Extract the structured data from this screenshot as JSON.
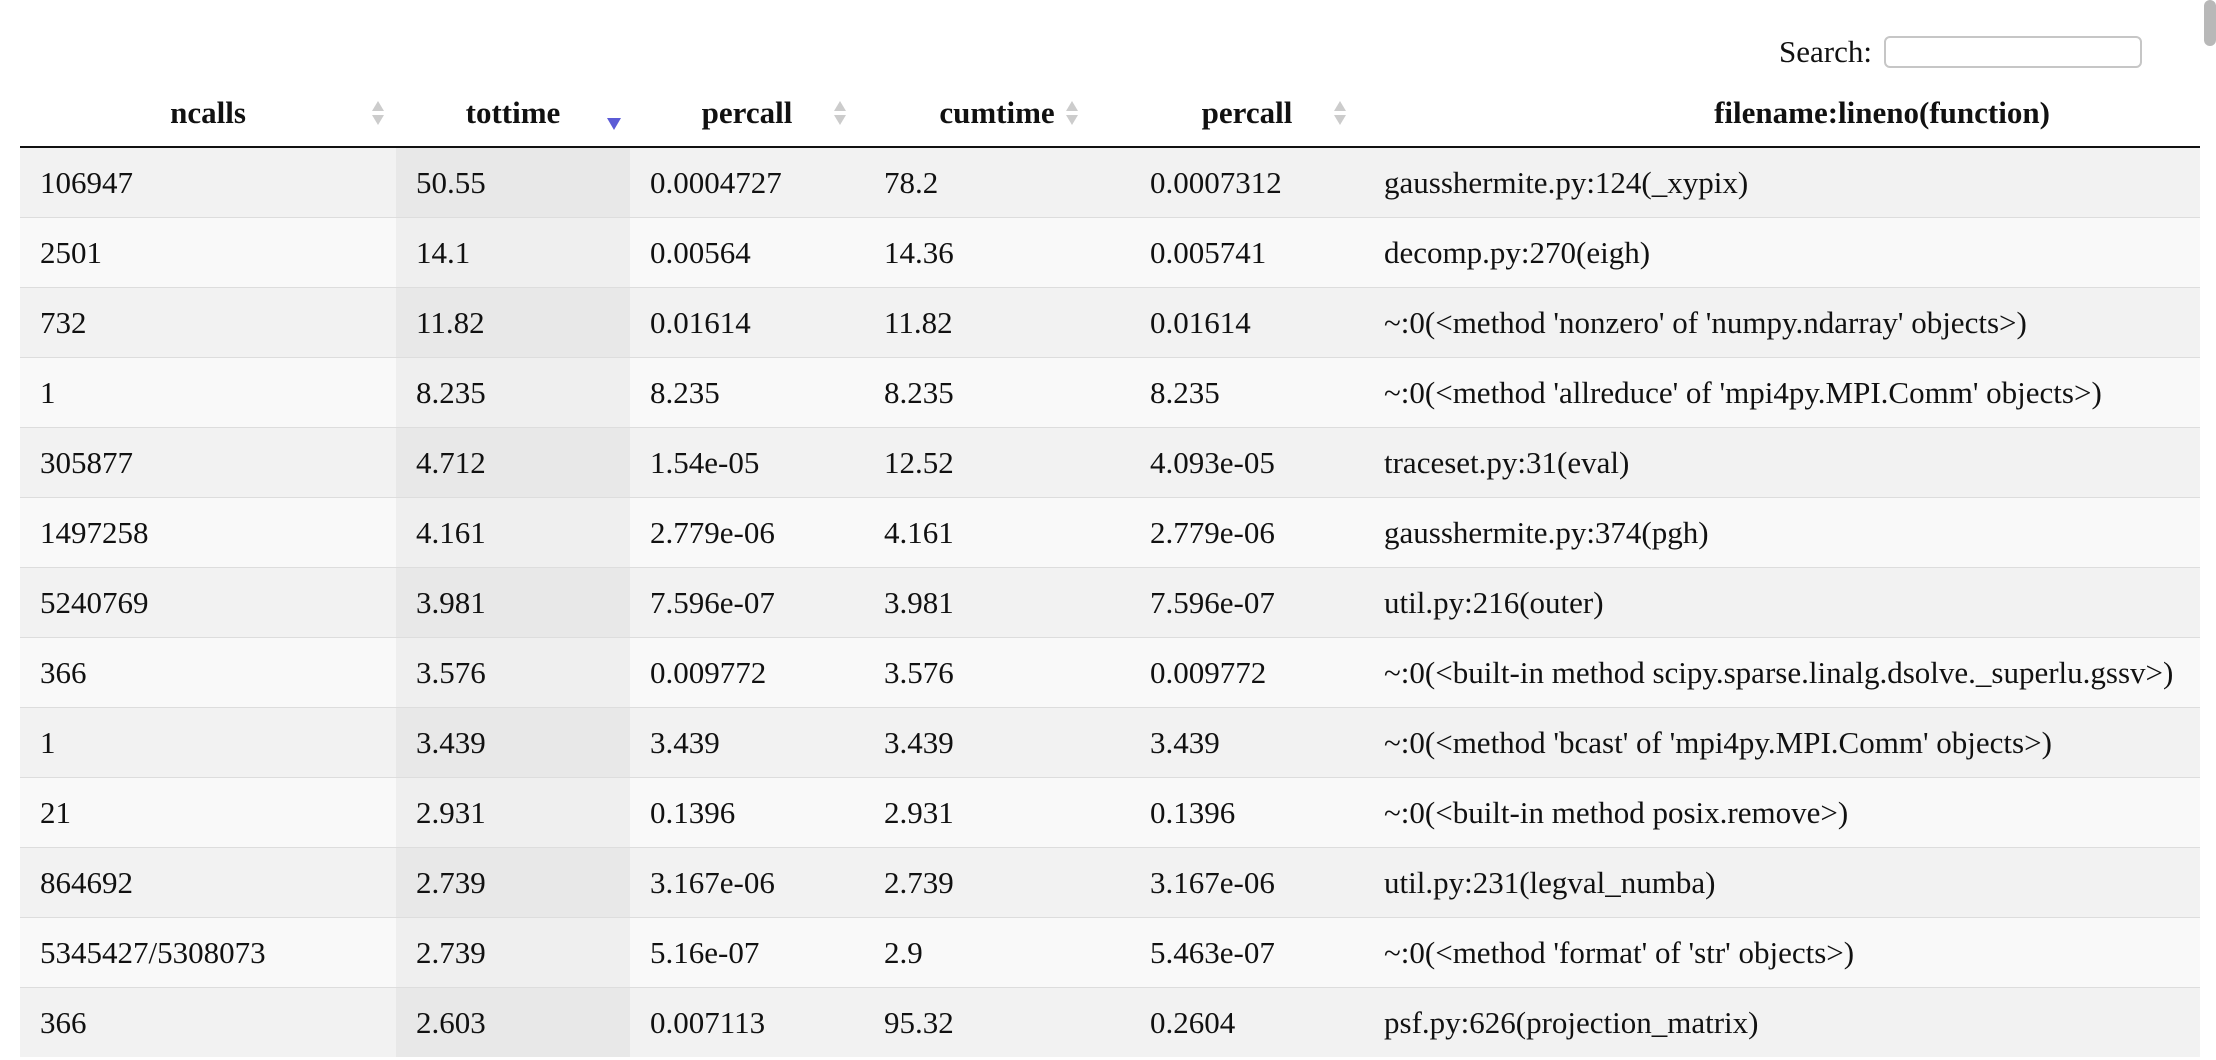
{
  "search": {
    "label": "Search:",
    "value": "",
    "placeholder": ""
  },
  "table": {
    "columns": [
      {
        "label": "ncalls",
        "sort": "none"
      },
      {
        "label": "tottime",
        "sort": "descending"
      },
      {
        "label": "percall",
        "sort": "none"
      },
      {
        "label": "cumtime",
        "sort": "none"
      },
      {
        "label": "percall",
        "sort": "none"
      },
      {
        "label": "filename:lineno(function)",
        "sort": "none"
      }
    ],
    "rows": [
      [
        "106947",
        "50.55",
        "0.0004727",
        "78.2",
        "0.0007312",
        "gausshermite.py:124(_xypix)"
      ],
      [
        "2501",
        "14.1",
        "0.00564",
        "14.36",
        "0.005741",
        "decomp.py:270(eigh)"
      ],
      [
        "732",
        "11.82",
        "0.01614",
        "11.82",
        "0.01614",
        "~:0(<method 'nonzero' of 'numpy.ndarray' objects>)"
      ],
      [
        "1",
        "8.235",
        "8.235",
        "8.235",
        "8.235",
        "~:0(<method 'allreduce' of 'mpi4py.MPI.Comm' objects>)"
      ],
      [
        "305877",
        "4.712",
        "1.54e-05",
        "12.52",
        "4.093e-05",
        "traceset.py:31(eval)"
      ],
      [
        "1497258",
        "4.161",
        "2.779e-06",
        "4.161",
        "2.779e-06",
        "gausshermite.py:374(pgh)"
      ],
      [
        "5240769",
        "3.981",
        "7.596e-07",
        "3.981",
        "7.596e-07",
        "util.py:216(outer)"
      ],
      [
        "366",
        "3.576",
        "0.009772",
        "3.576",
        "0.009772",
        "~:0(<built-in method scipy.sparse.linalg.dsolve._superlu.gssv>)"
      ],
      [
        "1",
        "3.439",
        "3.439",
        "3.439",
        "3.439",
        "~:0(<method 'bcast' of 'mpi4py.MPI.Comm' objects>)"
      ],
      [
        "21",
        "2.931",
        "0.1396",
        "2.931",
        "0.1396",
        "~:0(<built-in method posix.remove>)"
      ],
      [
        "864692",
        "2.739",
        "3.167e-06",
        "2.739",
        "3.167e-06",
        "util.py:231(legval_numba)"
      ],
      [
        "5345427/5308073",
        "2.739",
        "5.16e-07",
        "2.9",
        "5.463e-07",
        "~:0(<method 'format' of 'str' objects>)"
      ],
      [
        "366",
        "2.603",
        "0.007113",
        "95.32",
        "0.2604",
        "psf.py:626(projection_matrix)"
      ]
    ]
  },
  "colors": {
    "sort_active": "#5b5bd6",
    "sort_inactive": "#cccccc",
    "row_odd": "#f2f2f2",
    "row_even": "#f9f9f9"
  }
}
